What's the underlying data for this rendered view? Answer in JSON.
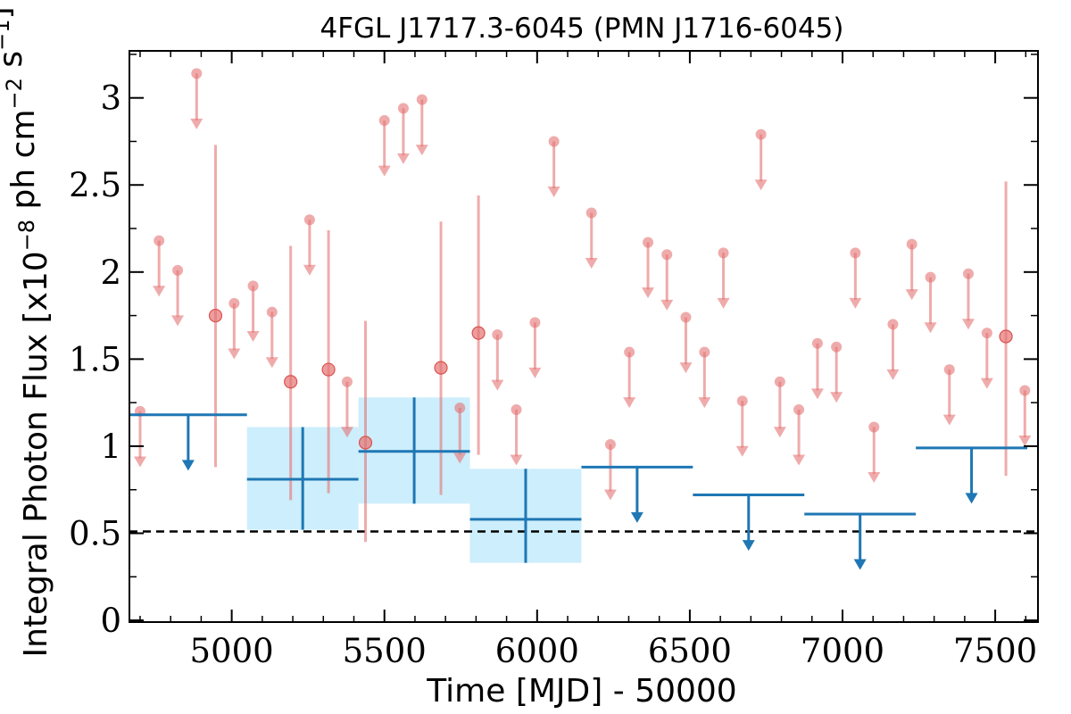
{
  "chart_data": {
    "type": "scatter",
    "title": "4FGL J1717.3-6045 (PMN J1716-6045)",
    "xlabel": "Time [MJD] - 50000",
    "ylabel": "Integral Photon Flux [x10^-8 ph cm^-2 s^-1]",
    "xlim": [
      4665,
      7640
    ],
    "ylim": [
      -0.01,
      3.27
    ],
    "x_ticks": [
      5000,
      5500,
      6000,
      6500,
      7000,
      7500
    ],
    "x_tick_labels": [
      "5000",
      "5500",
      "6000",
      "6500",
      "7000",
      "7500"
    ],
    "y_ticks": [
      0,
      0.5,
      1,
      1.5,
      2,
      2.5,
      3
    ],
    "y_tick_labels": [
      "0",
      "0.5",
      "1",
      "1.5",
      "2",
      "2.5",
      "3"
    ],
    "grid": false,
    "colors": {
      "short_bin": "#e57373",
      "long_bin": "#1f77b4",
      "band": "#cdeefc",
      "reference": "#000000"
    },
    "reference_line": {
      "y": 0.51,
      "style": "dashed"
    },
    "series": [
      {
        "marker": "upper-limit",
        "points": [
          {
            "x": 4700,
            "y": 1.2
          },
          {
            "x": 4762,
            "y": 2.18
          },
          {
            "x": 4823,
            "y": 2.01
          },
          {
            "x": 4885,
            "y": 3.14
          },
          {
            "x": 5008,
            "y": 1.82
          },
          {
            "x": 5070,
            "y": 1.92
          },
          {
            "x": 5132,
            "y": 1.77
          },
          {
            "x": 5255,
            "y": 2.3
          },
          {
            "x": 5378,
            "y": 1.37
          },
          {
            "x": 5500,
            "y": 2.87
          },
          {
            "x": 5562,
            "y": 2.94
          },
          {
            "x": 5623,
            "y": 2.99
          },
          {
            "x": 5747,
            "y": 1.22
          },
          {
            "x": 5870,
            "y": 1.64
          },
          {
            "x": 5932,
            "y": 1.21
          },
          {
            "x": 5993,
            "y": 1.71
          },
          {
            "x": 6055,
            "y": 2.75
          },
          {
            "x": 6178,
            "y": 2.34
          },
          {
            "x": 6240,
            "y": 1.01
          },
          {
            "x": 6302,
            "y": 1.54
          },
          {
            "x": 6363,
            "y": 2.17
          },
          {
            "x": 6425,
            "y": 2.1
          },
          {
            "x": 6487,
            "y": 1.74
          },
          {
            "x": 6548,
            "y": 1.54
          },
          {
            "x": 6610,
            "y": 2.11
          },
          {
            "x": 6672,
            "y": 1.26
          },
          {
            "x": 6733,
            "y": 2.79
          },
          {
            "x": 6795,
            "y": 1.37
          },
          {
            "x": 6857,
            "y": 1.21
          },
          {
            "x": 6918,
            "y": 1.59
          },
          {
            "x": 6980,
            "y": 1.57
          },
          {
            "x": 7042,
            "y": 2.11
          },
          {
            "x": 7103,
            "y": 1.11
          },
          {
            "x": 7165,
            "y": 1.7
          },
          {
            "x": 7227,
            "y": 2.16
          },
          {
            "x": 7288,
            "y": 1.97
          },
          {
            "x": 7350,
            "y": 1.44
          },
          {
            "x": 7412,
            "y": 1.99
          },
          {
            "x": 7473,
            "y": 1.65
          },
          {
            "x": 7597,
            "y": 1.32
          }
        ]
      },
      {
        "marker": "detection",
        "points": [
          {
            "x": 4947,
            "y": 1.75,
            "ylow": 0.88,
            "yhigh": 2.73
          },
          {
            "x": 5193,
            "y": 1.37,
            "ylow": 0.69,
            "yhigh": 2.15
          },
          {
            "x": 5317,
            "y": 1.44,
            "ylow": 0.73,
            "yhigh": 2.24
          },
          {
            "x": 5438,
            "y": 1.02,
            "ylow": 0.45,
            "yhigh": 1.72
          },
          {
            "x": 5685,
            "y": 1.45,
            "ylow": 0.72,
            "yhigh": 2.29
          },
          {
            "x": 5808,
            "y": 1.65,
            "ylow": 0.95,
            "yhigh": 2.44
          },
          {
            "x": 7535,
            "y": 1.63,
            "ylow": 0.83,
            "yhigh": 2.52
          }
        ]
      },
      {
        "marker": "long-bin-upper-limit",
        "points": [
          {
            "x0": 4665,
            "x1": 5050,
            "y": 1.18
          },
          {
            "x0": 6145,
            "x1": 6510,
            "y": 0.88
          },
          {
            "x0": 6510,
            "x1": 6875,
            "y": 0.72
          },
          {
            "x0": 6875,
            "x1": 7240,
            "y": 0.61
          },
          {
            "x0": 7240,
            "x1": 7605,
            "y": 0.99
          }
        ]
      },
      {
        "marker": "long-bin-detection",
        "points": [
          {
            "x0": 5050,
            "x1": 5415,
            "y": 0.81,
            "ylow": 0.52,
            "yhigh": 1.11
          },
          {
            "x0": 5415,
            "x1": 5780,
            "y": 0.97,
            "ylow": 0.67,
            "yhigh": 1.28
          },
          {
            "x0": 5780,
            "x1": 6145,
            "y": 0.58,
            "ylow": 0.33,
            "yhigh": 0.87
          }
        ]
      }
    ]
  }
}
